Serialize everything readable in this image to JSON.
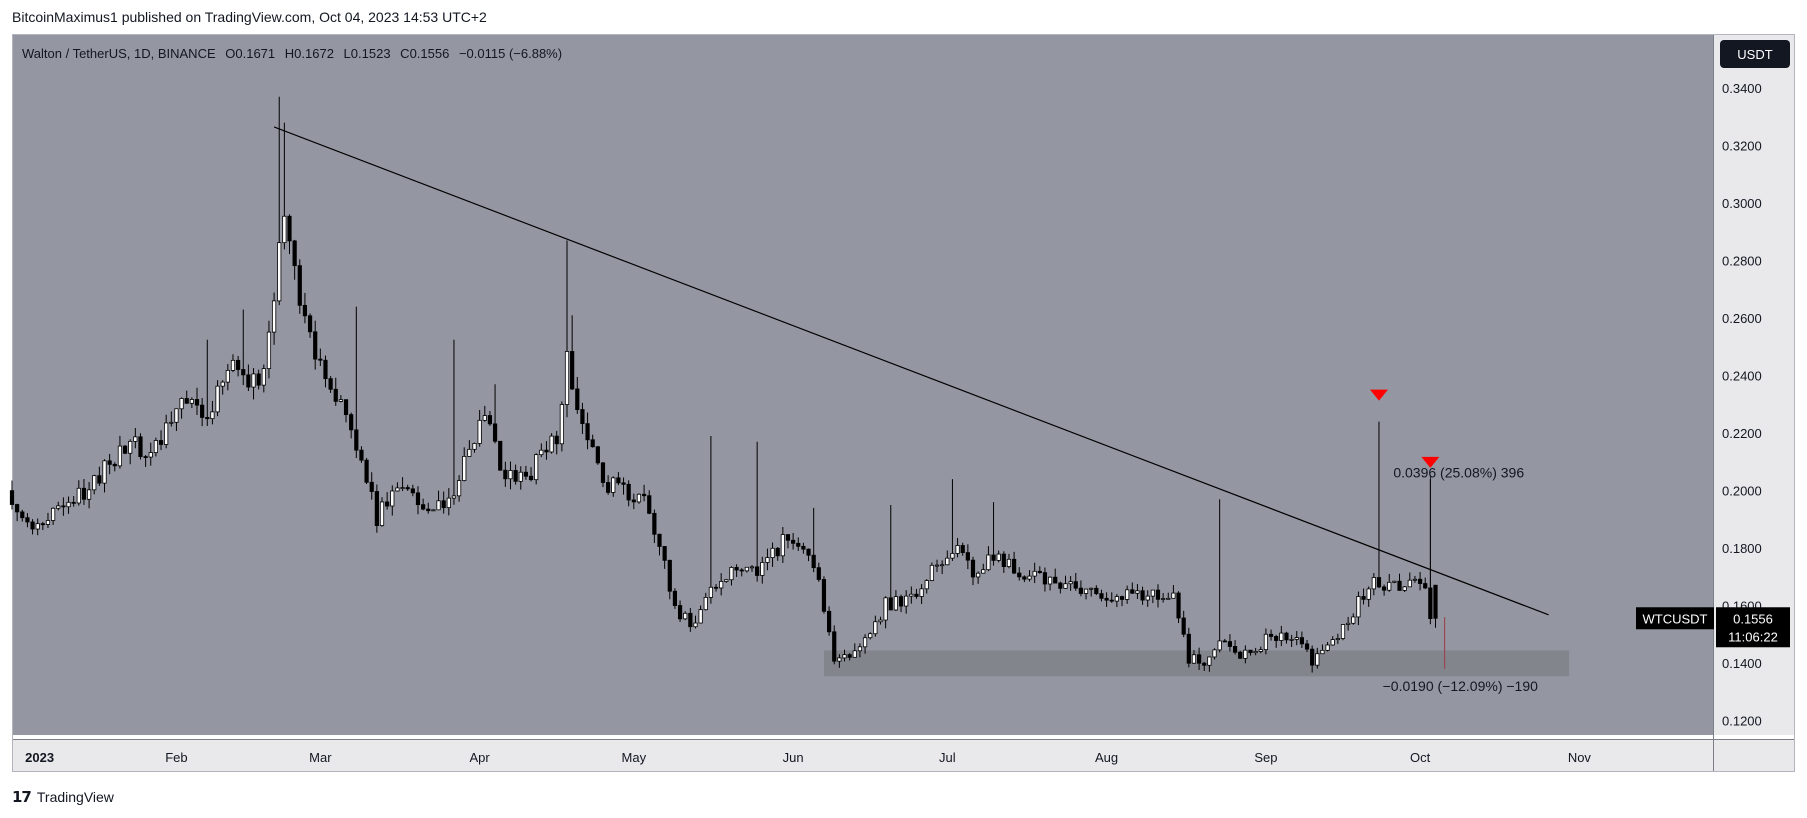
{
  "header": {
    "published": "BitcoinMaximus1 published on TradingView.com, Oct 04, 2023 14:53 UTC+2"
  },
  "footer": {
    "brand": "TradingView",
    "logo": "17"
  },
  "colors": {
    "pane": "#9497a1",
    "axis_bg": "#e9e9eb",
    "up": "#ffffff",
    "down": "#000000",
    "marker": "#ff0000",
    "support_zone": "#7f8188"
  },
  "chart_data": {
    "type": "candlestick",
    "legend": {
      "symbol": "Walton / TetherUS, 1D, BINANCE",
      "o_label": "O",
      "o": "0.1671",
      "h_label": "H",
      "h": "0.1672",
      "l_label": "L",
      "l": "0.1523",
      "c_label": "C",
      "c": "0.1556",
      "change": "−0.0115 (−6.88%)"
    },
    "currency_badge": "USDT",
    "price_label": {
      "symbol": "WTCUSDT",
      "price": "0.1556",
      "countdown": "11:06:22"
    },
    "y_ticks": [
      "0.3400",
      "0.3200",
      "0.3000",
      "0.2800",
      "0.2600",
      "0.2400",
      "0.2200",
      "0.2000",
      "0.1800",
      "0.1600",
      "0.1400",
      "0.1200"
    ],
    "ylim": [
      0.1136,
      0.3585
    ],
    "x_ticks": [
      {
        "label": "2023",
        "date": "2023-01-01"
      },
      {
        "label": "Feb",
        "date": "2023-02-01"
      },
      {
        "label": "Mar",
        "date": "2023-03-01"
      },
      {
        "label": "Apr",
        "date": "2023-04-01"
      },
      {
        "label": "May",
        "date": "2023-05-01"
      },
      {
        "label": "Jun",
        "date": "2023-06-01"
      },
      {
        "label": "Jul",
        "date": "2023-07-01"
      },
      {
        "label": "Aug",
        "date": "2023-08-01"
      },
      {
        "label": "Sep",
        "date": "2023-09-01"
      },
      {
        "label": "Oct",
        "date": "2023-10-01"
      },
      {
        "label": "Nov",
        "date": "2023-11-01"
      }
    ],
    "xlim": [
      "2022-12-31",
      "2023-11-27"
    ],
    "anchors": [
      [
        "2022-12-31",
        0.2
      ],
      [
        "2023-01-04",
        0.186
      ],
      [
        "2023-01-10",
        0.192
      ],
      [
        "2023-01-18",
        0.205
      ],
      [
        "2023-01-24",
        0.217
      ],
      [
        "2023-01-28",
        0.212
      ],
      [
        "2023-02-03",
        0.235
      ],
      [
        "2023-02-08",
        0.225
      ],
      [
        "2023-02-13",
        0.246
      ],
      [
        "2023-02-18",
        0.235
      ],
      [
        "2023-02-21",
        0.265
      ],
      [
        "2023-02-23",
        0.3
      ],
      [
        "2023-02-25",
        0.275
      ],
      [
        "2023-03-01",
        0.245
      ],
      [
        "2023-03-07",
        0.23
      ],
      [
        "2023-03-13",
        0.19
      ],
      [
        "2023-03-18",
        0.204
      ],
      [
        "2023-03-23",
        0.193
      ],
      [
        "2023-03-28",
        0.2
      ],
      [
        "2023-04-03",
        0.225
      ],
      [
        "2023-04-07",
        0.205
      ],
      [
        "2023-04-12",
        0.207
      ],
      [
        "2023-04-17",
        0.219
      ],
      [
        "2023-04-19",
        0.247
      ],
      [
        "2023-04-22",
        0.222
      ],
      [
        "2023-04-27",
        0.202
      ],
      [
        "2023-05-05",
        0.195
      ],
      [
        "2023-05-10",
        0.16
      ],
      [
        "2023-05-13",
        0.152
      ],
      [
        "2023-05-18",
        0.168
      ],
      [
        "2023-05-22",
        0.175
      ],
      [
        "2023-05-26",
        0.17
      ],
      [
        "2023-05-31",
        0.183
      ],
      [
        "2023-06-04",
        0.18
      ],
      [
        "2023-06-07",
        0.168
      ],
      [
        "2023-06-10",
        0.139
      ],
      [
        "2023-06-15",
        0.145
      ],
      [
        "2023-06-20",
        0.16
      ],
      [
        "2023-06-26",
        0.165
      ],
      [
        "2023-07-03",
        0.18
      ],
      [
        "2023-07-07",
        0.172
      ],
      [
        "2023-07-12",
        0.178
      ],
      [
        "2023-07-17",
        0.17
      ],
      [
        "2023-07-25",
        0.167
      ],
      [
        "2023-08-03",
        0.161
      ],
      [
        "2023-08-10",
        0.165
      ],
      [
        "2023-08-15",
        0.165
      ],
      [
        "2023-08-18",
        0.14
      ],
      [
        "2023-08-22",
        0.142
      ],
      [
        "2023-08-25",
        0.148
      ],
      [
        "2023-08-28",
        0.141
      ],
      [
        "2023-09-03",
        0.15
      ],
      [
        "2023-09-08",
        0.149
      ],
      [
        "2023-09-11",
        0.141
      ],
      [
        "2023-09-16",
        0.148
      ],
      [
        "2023-09-20",
        0.162
      ],
      [
        "2023-09-23",
        0.168
      ],
      [
        "2023-09-26",
        0.166
      ],
      [
        "2023-10-01",
        0.17
      ],
      [
        "2023-10-03",
        0.167
      ],
      [
        "2023-10-04",
        0.1556
      ]
    ],
    "wick_highs": [
      [
        "2023-02-07",
        0.2525
      ],
      [
        "2023-02-14",
        0.263
      ],
      [
        "2023-02-21",
        0.337
      ],
      [
        "2023-02-22",
        0.328
      ],
      [
        "2023-03-08",
        0.264
      ],
      [
        "2023-03-27",
        0.2525
      ],
      [
        "2023-04-04",
        0.237
      ],
      [
        "2023-04-18",
        0.287
      ],
      [
        "2023-04-19",
        0.261
      ],
      [
        "2023-05-16",
        0.219
      ],
      [
        "2023-05-25",
        0.217
      ],
      [
        "2023-06-05",
        0.194
      ],
      [
        "2023-06-20",
        0.195
      ],
      [
        "2023-07-02",
        0.204
      ],
      [
        "2023-07-10",
        0.196
      ],
      [
        "2023-08-23",
        0.197
      ],
      [
        "2023-09-23",
        0.224
      ],
      [
        "2023-10-03",
        0.204
      ]
    ],
    "ohlc_last": {
      "date": "2023-10-04",
      "open": 0.1671,
      "high": 0.1672,
      "low": 0.1523,
      "close": 0.1556
    },
    "trendline": [
      [
        "2023-02-20",
        0.3265
      ],
      [
        "2023-10-26",
        0.1568
      ]
    ],
    "support_zone": {
      "from": "2023-06-07",
      "to": "2023-10-30",
      "low": 0.1354,
      "high": 0.1444
    },
    "down_markers": [
      [
        "2023-09-23",
        0.2334
      ],
      [
        "2023-10-03",
        0.21
      ]
    ],
    "measure_up": {
      "date": "2023-10-03",
      "price": 0.2053,
      "text": "0.0396 (25.08%) 396"
    },
    "measure_down": {
      "date": "2023-10-05",
      "from": 0.156,
      "to": 0.138,
      "text": "−0.0190 (−12.09%) −190"
    }
  }
}
